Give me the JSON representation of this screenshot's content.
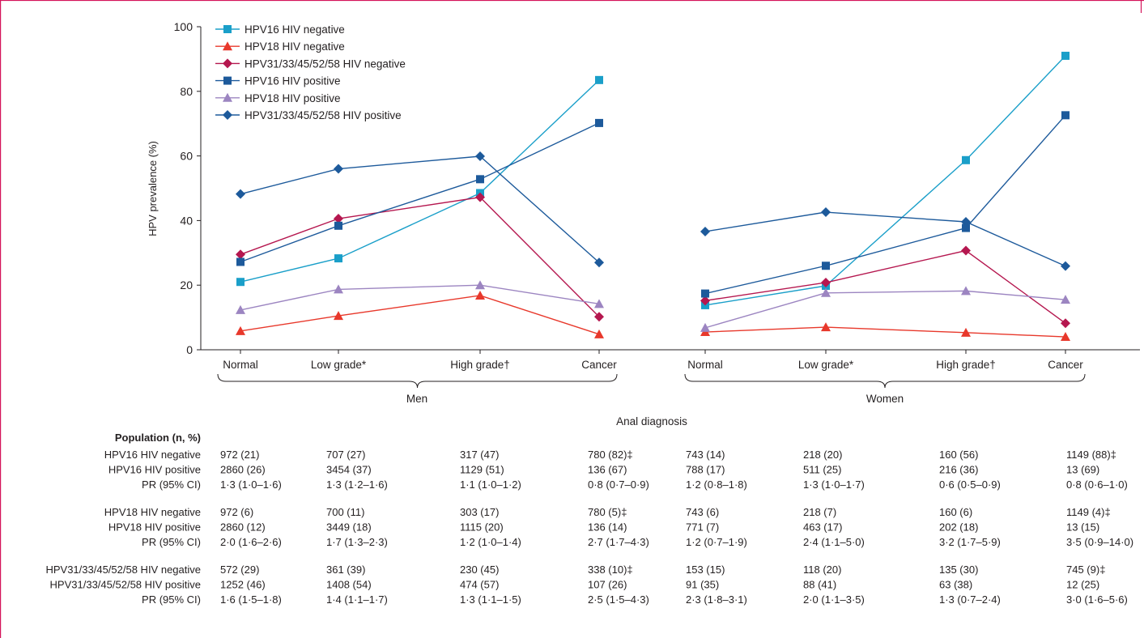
{
  "chart_data": {
    "type": "line",
    "ylabel": "HPV prevalence (%)",
    "xlabel": "Anal diagnosis",
    "ylim": [
      0,
      100
    ],
    "yticks": [
      "0",
      "20",
      "40",
      "60",
      "80",
      "100"
    ],
    "grid": false,
    "legend_position": "top-left",
    "groups": [
      {
        "name": "Men",
        "categories": [
          "Normal",
          "Low grade*",
          "High grade†",
          "Cancer"
        ]
      },
      {
        "name": "Women",
        "categories": [
          "Normal",
          "Low grade*",
          "High grade†",
          "Cancer"
        ]
      }
    ],
    "series": [
      {
        "name": "HPV16 HIV negative",
        "color": "#1a9fc9",
        "marker": "square",
        "men": [
          21,
          28.3,
          48.5,
          83.5
        ],
        "women": [
          13.8,
          19.8,
          58.7,
          91
        ]
      },
      {
        "name": "HPV18 HIV negative",
        "color": "#e8382b",
        "marker": "triangle",
        "men": [
          5.8,
          10.5,
          16.8,
          4.8
        ],
        "women": [
          5.5,
          7,
          5.3,
          4
        ]
      },
      {
        "name": "HPV31/33/45/52/58 HIV negative",
        "color": "#b5174f",
        "marker": "diamond",
        "men": [
          29.5,
          40.6,
          47.2,
          10.2
        ],
        "women": [
          15.2,
          20.8,
          30.7,
          8.2
        ]
      },
      {
        "name": "HPV16 HIV positive",
        "color": "#1d5a9b",
        "marker": "square",
        "men": [
          27.2,
          38.4,
          52.8,
          70.2
        ],
        "women": [
          17.4,
          26,
          37.7,
          72.6
        ]
      },
      {
        "name": "HPV18 HIV positive",
        "color": "#9c85c1",
        "marker": "triangle",
        "men": [
          12.3,
          18.7,
          20,
          14.2
        ],
        "women": [
          6.8,
          17.6,
          18.2,
          15.5
        ]
      },
      {
        "name": "HPV31/33/45/52/58 HIV positive",
        "color": "#1d5a9b",
        "marker": "diamond",
        "men": [
          48.2,
          56,
          59.9,
          27
        ],
        "women": [
          36.6,
          42.6,
          39.6,
          25.9
        ]
      }
    ]
  },
  "table": {
    "header": "Population (n, %)",
    "blocks": [
      {
        "rows": [
          {
            "label": "HPV16 HIV negative",
            "cells": [
              "972 (21)",
              "707 (27)",
              "317 (47)",
              "780 (82)‡",
              "743 (14)",
              "218 (20)",
              "160 (56)",
              "1149 (88)‡"
            ]
          },
          {
            "label": "HPV16 HIV positive",
            "cells": [
              "2860 (26)",
              "3454 (37)",
              "1129 (51)",
              "136 (67)",
              "788 (17)",
              "511 (25)",
              "216 (36)",
              "13 (69)"
            ]
          },
          {
            "label": "PR (95% CI)",
            "cells": [
              "1·3 (1·0–1·6)",
              "1·3 (1·2–1·6)",
              "1·1 (1·0–1·2)",
              "0·8 (0·7–0·9)",
              "1·2 (0·8–1·8)",
              "1·3 (1·0–1·7)",
              "0·6 (0·5–0·9)",
              "0·8 (0·6–1·0)"
            ]
          }
        ]
      },
      {
        "rows": [
          {
            "label": "HPV18 HIV negative",
            "cells": [
              "972 (6)",
              "700 (11)",
              "303 (17)",
              "780 (5)‡",
              "743 (6)",
              "218 (7)",
              "160 (6)",
              "1149 (4)‡"
            ]
          },
          {
            "label": "HPV18 HIV positive",
            "cells": [
              "2860 (12)",
              "3449 (18)",
              "1115 (20)",
              "136 (14)",
              "771 (7)",
              "463 (17)",
              "202 (18)",
              "13 (15)"
            ]
          },
          {
            "label": "PR (95% CI)",
            "cells": [
              "2·0 (1·6–2·6)",
              "1·7 (1·3–2·3)",
              "1·2 (1·0–1·4)",
              "2·7 (1·7–4·3)",
              "1·2 (0·7–1·9)",
              "2·4 (1·1–5·0)",
              "3·2 (1·7–5·9)",
              "3·5 (0·9–14·0)"
            ]
          }
        ]
      },
      {
        "rows": [
          {
            "label": "HPV31/33/45/52/58 HIV negative",
            "cells": [
              "572 (29)",
              "361 (39)",
              "230 (45)",
              "338 (10)‡",
              "153 (15)",
              "118 (20)",
              "135 (30)",
              "745 (9)‡"
            ]
          },
          {
            "label": "HPV31/33/45/52/58 HIV positive",
            "cells": [
              "1252 (46)",
              "1408 (54)",
              "474 (57)",
              "107 (26)",
              "91 (35)",
              "88 (41)",
              "63 (38)",
              "12 (25)"
            ]
          },
          {
            "label": "PR (95% CI)",
            "cells": [
              "1·6 (1·5–1·8)",
              "1·4 (1·1–1·7)",
              "1·3 (1·1–1·5)",
              "2·5 (1·5–4·3)",
              "2·3 (1·8–3·1)",
              "2·0 (1·1–3·5)",
              "1·3 (0·7–2·4)",
              "3·0 (1·6–5·6)"
            ]
          }
        ]
      }
    ]
  },
  "colors": {
    "frame": "#d4145a",
    "axis": "#231f20",
    "text": "#231f20"
  }
}
